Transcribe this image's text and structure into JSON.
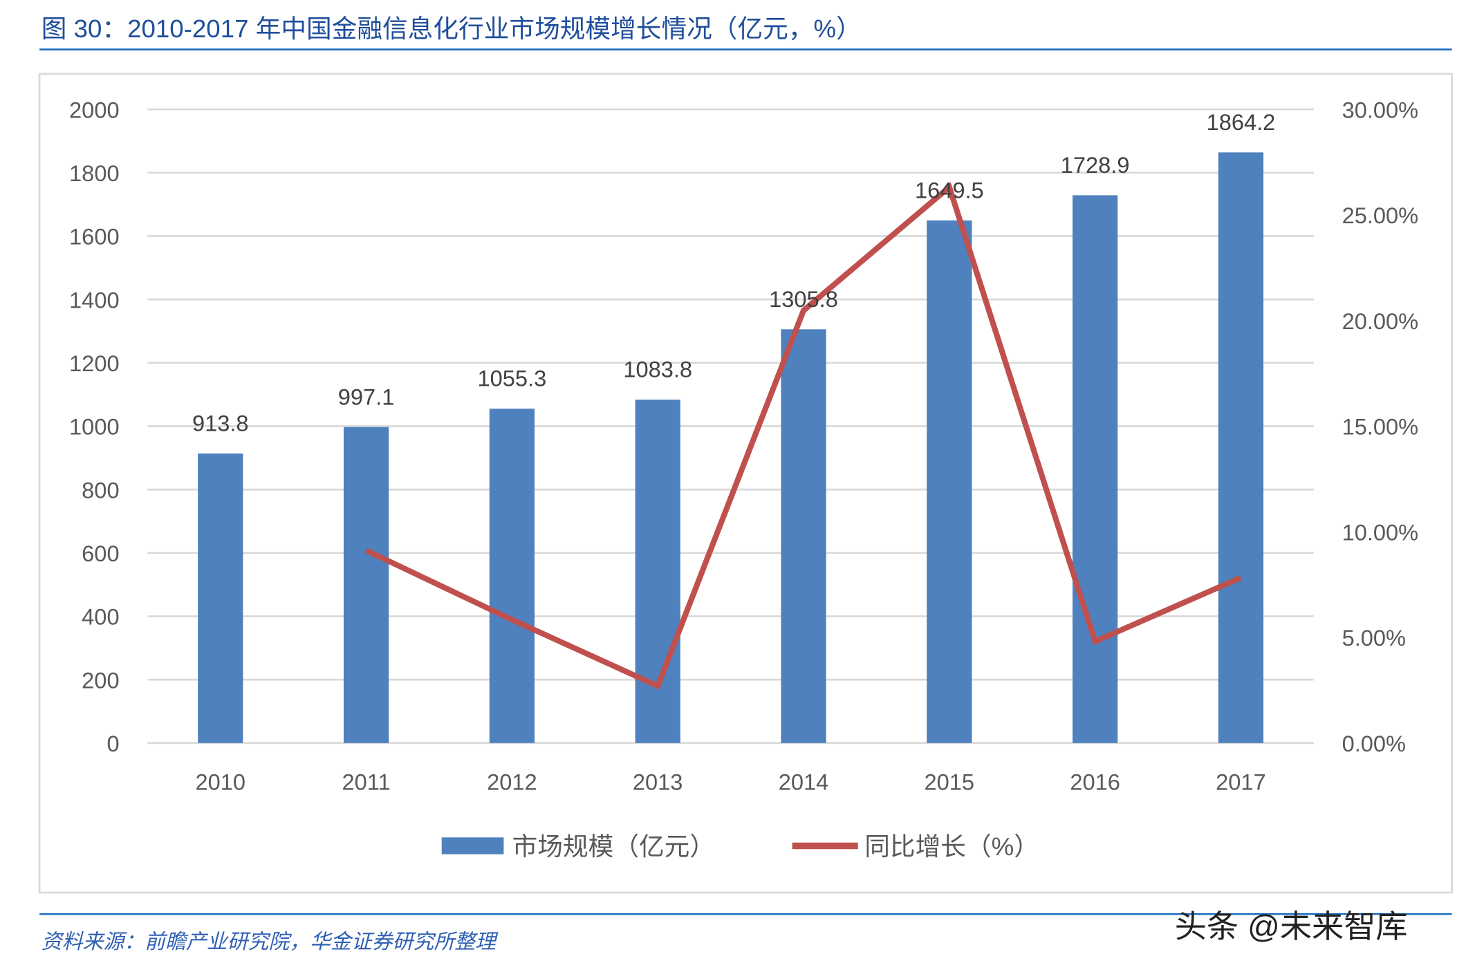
{
  "title": "图 30：2010-2017 年中国金融信息化行业市场规模增长情况（亿元，%）",
  "source": "资料来源：前瞻产业研究院，华金证券研究所整理",
  "watermark": "头条 @未来智库",
  "colors": {
    "bar": "#4e81bd",
    "line": "#c0504d",
    "accent": "#1f6fbf"
  },
  "chart_data": {
    "type": "bar+line",
    "categories": [
      "2010",
      "2011",
      "2012",
      "2013",
      "2014",
      "2015",
      "2016",
      "2017"
    ],
    "series": [
      {
        "name": "市场规模（亿元）",
        "type": "bar",
        "axis": "left",
        "values": [
          913.8,
          997.1,
          1055.3,
          1083.8,
          1305.8,
          1649.5,
          1728.9,
          1864.2
        ],
        "data_labels": [
          "913.8",
          "997.1",
          "1055.3",
          "1083.8",
          "1305.8",
          "1649.5",
          "1728.9",
          "1864.2"
        ]
      },
      {
        "name": "同比增长（%）",
        "type": "line",
        "axis": "right",
        "values": [
          null,
          9.12,
          5.84,
          2.7,
          20.48,
          26.32,
          4.81,
          7.83
        ]
      }
    ],
    "y_left": {
      "range": [
        0,
        2000
      ],
      "ticks": [
        "0",
        "200",
        "400",
        "600",
        "800",
        "1000",
        "1200",
        "1400",
        "1600",
        "1800",
        "2000"
      ]
    },
    "y_right": {
      "range": [
        0,
        30
      ],
      "ticks": [
        "0.00%",
        "5.00%",
        "10.00%",
        "15.00%",
        "20.00%",
        "25.00%",
        "30.00%"
      ]
    },
    "grid": true,
    "legend": "bottom"
  }
}
